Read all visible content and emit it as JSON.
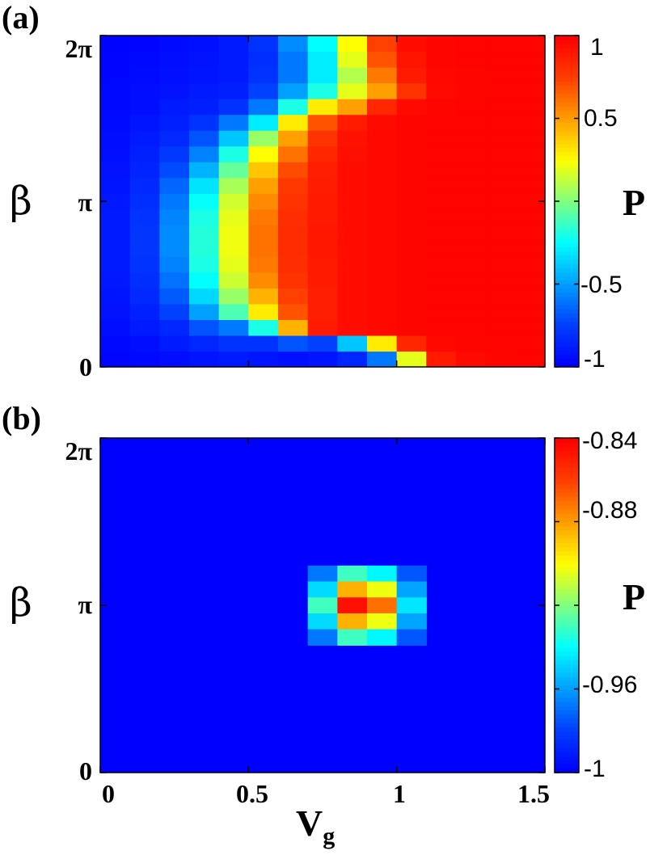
{
  "chart_data": [
    {
      "type": "heatmap",
      "panel_label": "(a)",
      "xlabel": "",
      "ylabel": "β",
      "x_range": [
        0,
        1.5
      ],
      "y_range": [
        0,
        6.2832
      ],
      "y_tick_labels": [
        "0",
        "π",
        "2π"
      ],
      "x_tick_labels": [
        "",
        "",
        "",
        ""
      ],
      "colorbar": {
        "label": "P",
        "range": [
          -1,
          1
        ],
        "ticks": [
          1,
          0.5,
          0,
          -0.5,
          -1
        ],
        "tick_labels": [
          "1",
          "0.5",
          "",
          "-0.5",
          "-1"
        ],
        "colormap": [
          "#0000ff",
          "#00ffff",
          "#ffff00",
          "#ff0000"
        ]
      },
      "grid": {
        "nx": 15,
        "ny": 21,
        "description": "P(Vg, beta) sampled on a 15 x 21 grid, Vg from 0 to 1.5, beta from 0 to 2pi",
        "values": [
          [
            -0.98,
            -0.97,
            -0.95,
            -0.92,
            -0.9,
            -0.92,
            -0.94,
            -0.92,
            -0.85,
            -0.6,
            0.2,
            0.9,
            0.96,
            0.98,
            0.99
          ],
          [
            -0.97,
            -0.95,
            -0.9,
            -0.85,
            -0.8,
            -0.8,
            -0.7,
            -0.75,
            -0.4,
            0.3,
            0.85,
            0.97,
            0.98,
            0.99,
            0.99
          ],
          [
            -0.95,
            -0.9,
            -0.85,
            -0.7,
            -0.6,
            -0.2,
            0.45,
            0.9,
            0.95,
            0.97,
            0.98,
            0.99,
            0.99,
            0.99,
            0.99
          ],
          [
            -0.93,
            -0.87,
            -0.75,
            -0.5,
            -0.1,
            0.3,
            0.7,
            0.88,
            0.95,
            0.97,
            0.98,
            0.99,
            0.99,
            0.99,
            0.99
          ],
          [
            -0.92,
            -0.84,
            -0.68,
            -0.35,
            0.05,
            0.45,
            0.75,
            0.88,
            0.95,
            0.97,
            0.98,
            0.99,
            0.99,
            0.99,
            0.99
          ],
          [
            -0.91,
            -0.82,
            -0.62,
            -0.25,
            0.15,
            0.55,
            0.8,
            0.9,
            0.95,
            0.97,
            0.98,
            0.99,
            0.99,
            0.99,
            0.99
          ],
          [
            -0.9,
            -0.8,
            -0.58,
            -0.2,
            0.2,
            0.6,
            0.82,
            0.9,
            0.95,
            0.97,
            0.98,
            0.99,
            0.99,
            0.99,
            0.99
          ],
          [
            -0.9,
            -0.79,
            -0.55,
            -0.18,
            0.22,
            0.62,
            0.83,
            0.91,
            0.95,
            0.97,
            0.98,
            0.99,
            0.99,
            0.99,
            0.99
          ],
          [
            -0.9,
            -0.79,
            -0.55,
            -0.18,
            0.22,
            0.62,
            0.83,
            0.91,
            0.95,
            0.97,
            0.98,
            0.99,
            0.99,
            0.99,
            0.99
          ],
          [
            -0.9,
            -0.8,
            -0.57,
            -0.2,
            0.2,
            0.6,
            0.82,
            0.9,
            0.95,
            0.97,
            0.98,
            0.99,
            0.99,
            0.99,
            0.99
          ],
          [
            -0.91,
            -0.82,
            -0.6,
            -0.24,
            0.16,
            0.56,
            0.8,
            0.9,
            0.95,
            0.97,
            0.98,
            0.99,
            0.99,
            0.99,
            0.99
          ],
          [
            -0.92,
            -0.84,
            -0.65,
            -0.32,
            0.08,
            0.5,
            0.78,
            0.89,
            0.95,
            0.97,
            0.98,
            0.99,
            0.99,
            0.99,
            0.99
          ],
          [
            -0.93,
            -0.86,
            -0.72,
            -0.45,
            -0.05,
            0.4,
            0.72,
            0.88,
            0.95,
            0.97,
            0.98,
            0.99,
            0.99,
            0.99,
            0.99
          ],
          [
            -0.94,
            -0.88,
            -0.78,
            -0.58,
            -0.2,
            0.25,
            0.62,
            0.85,
            0.94,
            0.97,
            0.98,
            0.99,
            0.99,
            0.99,
            0.99
          ],
          [
            -0.95,
            -0.9,
            -0.84,
            -0.7,
            -0.4,
            0.05,
            0.5,
            0.8,
            0.93,
            0.97,
            0.98,
            0.99,
            0.99,
            0.99,
            0.99
          ],
          [
            -0.96,
            -0.92,
            -0.88,
            -0.8,
            -0.6,
            -0.3,
            0.3,
            0.7,
            0.9,
            0.96,
            0.98,
            0.99,
            0.99,
            0.99,
            0.99
          ],
          [
            -0.97,
            -0.95,
            -0.9,
            -0.88,
            -0.8,
            -0.6,
            -0.2,
            0.3,
            0.5,
            0.85,
            0.96,
            0.98,
            0.99,
            0.99,
            0.99
          ],
          [
            -0.97,
            -0.95,
            -0.93,
            -0.9,
            -0.88,
            -0.75,
            -0.5,
            -0.2,
            0.2,
            0.5,
            0.8,
            0.96,
            0.98,
            0.99,
            0.99
          ],
          [
            -0.98,
            -0.96,
            -0.94,
            -0.92,
            -0.9,
            -0.8,
            -0.6,
            -0.3,
            0.1,
            0.6,
            0.9,
            0.97,
            0.98,
            0.99,
            0.99
          ],
          [
            -0.98,
            -0.97,
            -0.95,
            -0.93,
            -0.9,
            -0.82,
            -0.6,
            -0.3,
            0.2,
            0.7,
            0.92,
            0.98,
            0.99,
            0.99,
            0.99
          ],
          [
            -0.99,
            -0.98,
            -0.96,
            -0.94,
            -0.9,
            -0.8,
            -0.55,
            -0.25,
            0.25,
            0.75,
            0.95,
            0.98,
            0.99,
            0.99,
            0.99
          ]
        ]
      }
    },
    {
      "type": "heatmap",
      "panel_label": "(b)",
      "xlabel": "V",
      "xlabel_sub": "g",
      "ylabel": "β",
      "x_range": [
        0,
        1.5
      ],
      "y_range": [
        0,
        6.2832
      ],
      "x_ticks": [
        0,
        0.5,
        1,
        1.5
      ],
      "x_tick_labels": [
        "0",
        "0.5",
        "1",
        "1.5"
      ],
      "y_tick_labels": [
        "0",
        "π",
        "2π"
      ],
      "colorbar": {
        "label": "P",
        "range": [
          -1,
          -0.84
        ],
        "ticks": [
          -0.84,
          -0.88,
          -0.92,
          -0.96,
          -1
        ],
        "tick_labels": [
          "-0.84",
          "-0.88",
          "",
          "-0.96",
          "-1"
        ],
        "colormap": [
          "#0000ff",
          "#00ffff",
          "#ffff00",
          "#ff0000"
        ]
      },
      "features": [
        {
          "vg": 0.75,
          "beta": 3.14,
          "value": -0.93
        },
        {
          "vg": 0.85,
          "beta": 3.14,
          "value": -0.845
        },
        {
          "vg": 0.95,
          "beta": 3.14,
          "value": -0.87
        },
        {
          "vg": 1.05,
          "beta": 3.14,
          "value": -0.945
        }
      ],
      "background_value": -1
    }
  ]
}
